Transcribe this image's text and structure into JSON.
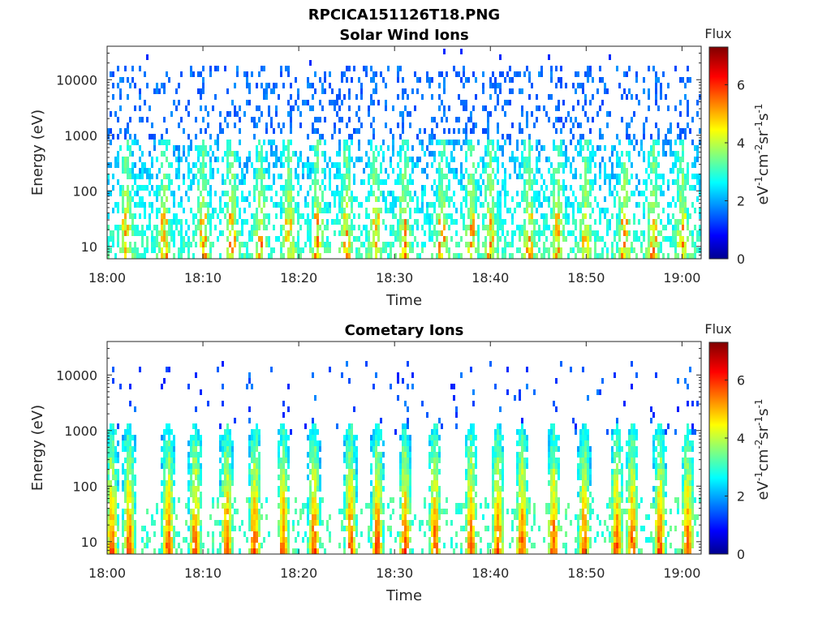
{
  "figure_title": "RPCICA151126T18.PNG",
  "chart_data": [
    {
      "type": "heatmap",
      "title": "Solar Wind Ions",
      "xlabel": "Time",
      "ylabel": "Energy (eV)",
      "x_range": [
        "18:00",
        "19:02"
      ],
      "x_ticks": [
        "18:00",
        "18:10",
        "18:20",
        "18:30",
        "18:40",
        "18:50",
        "19:00"
      ],
      "y_scale": "log",
      "y_range": [
        6,
        40000
      ],
      "y_ticks": [
        "10",
        "100",
        "1000",
        "10000"
      ],
      "colorbar": {
        "title": "Flux",
        "label": "eV-1cm-2sr-1s-1",
        "range": [
          0,
          7.3
        ],
        "ticks": [
          "0",
          "2",
          "4",
          "6"
        ],
        "colormap": "jet"
      },
      "grid": false,
      "pattern": {
        "dense_band_energy_eV": [
          6,
          1000
        ],
        "sparse_band_energy_eV": [
          1000,
          20000
        ],
        "typical_flux_low_energy": 3.2,
        "typical_flux_high_energy": 1.7,
        "max_flux": 5.5,
        "burst_times_min": [
          2,
          6,
          10,
          13,
          16,
          19,
          22,
          25,
          28,
          31,
          35,
          38,
          40,
          44,
          47,
          50,
          54,
          57,
          60
        ]
      }
    },
    {
      "type": "heatmap",
      "title": "Cometary Ions",
      "xlabel": "Time",
      "ylabel": "Energy (eV)",
      "x_range": [
        "18:00",
        "19:02"
      ],
      "x_ticks": [
        "18:00",
        "18:10",
        "18:20",
        "18:30",
        "18:40",
        "18:50",
        "19:00"
      ],
      "y_scale": "log",
      "y_range": [
        6,
        40000
      ],
      "y_ticks": [
        "10",
        "100",
        "1000",
        "10000"
      ],
      "colorbar": {
        "title": "Flux",
        "label": "eV-1cm-2sr-1s-1",
        "range": [
          0,
          7.3
        ],
        "ticks": [
          "0",
          "2",
          "4",
          "6"
        ],
        "colormap": "jet"
      },
      "grid": false,
      "pattern": {
        "burst_times_min": [
          0.5,
          2.3,
          6.4,
          9.2,
          12.5,
          15.4,
          18.4,
          21.6,
          25.4,
          28.2,
          31.1,
          34.2,
          38.0,
          40.8,
          43.3,
          46.6,
          49.8,
          53.2,
          54.8,
          57.7,
          60.6
        ],
        "burst_peak_flux": 7.0,
        "burst_top_energy_eV": 1000,
        "scatter_energy_eV": [
          2000,
          20000
        ],
        "scatter_flux": 1.5
      }
    }
  ]
}
